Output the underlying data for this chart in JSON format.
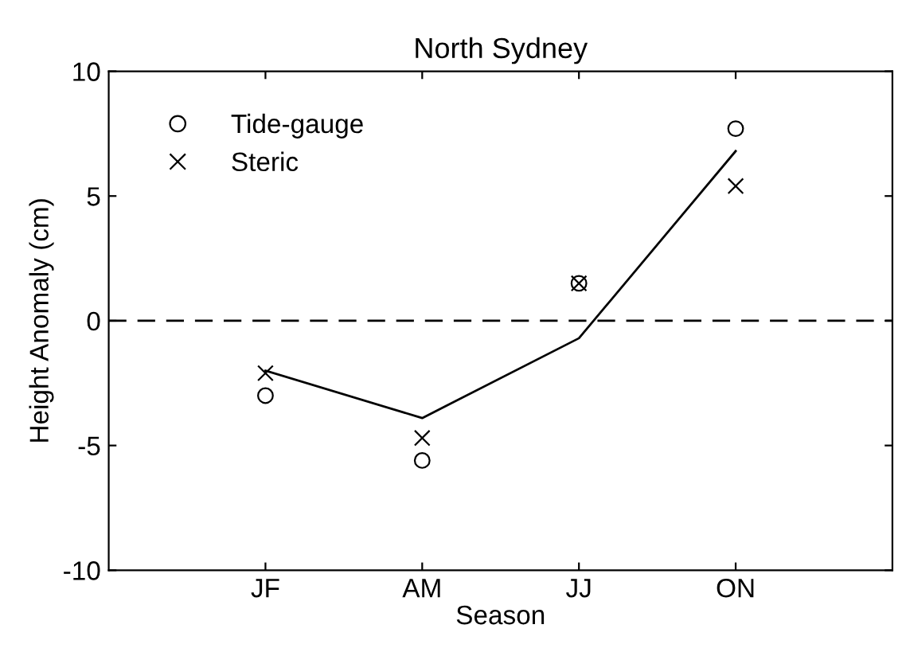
{
  "chart_data": {
    "type": "scatter",
    "title": "North Sydney",
    "xlabel": "Season",
    "ylabel": "Height Anomaly (cm)",
    "categories": [
      "JF",
      "AM",
      "JJ",
      "ON"
    ],
    "series": [
      {
        "name": "Tide-gauge",
        "marker": "circle",
        "color": "#000000",
        "values": [
          -3.0,
          -5.6,
          1.5,
          7.7
        ]
      },
      {
        "name": "Steric",
        "marker": "cross",
        "color": "#000000",
        "values": [
          -2.1,
          -4.7,
          1.5,
          5.4
        ]
      },
      {
        "type": "line",
        "marker": "none",
        "line_style": "solid",
        "color": "#000000",
        "values": [
          -2.0,
          -3.9,
          -0.7,
          6.8
        ]
      }
    ],
    "ylim": [
      -10,
      10
    ],
    "yticks": [
      -10,
      -5,
      0,
      5,
      10
    ],
    "ref_lines": [
      {
        "axis": "y",
        "value": 0,
        "line_style": "dashed",
        "color": "#000000"
      }
    ],
    "legend": "top left",
    "grid": false
  }
}
